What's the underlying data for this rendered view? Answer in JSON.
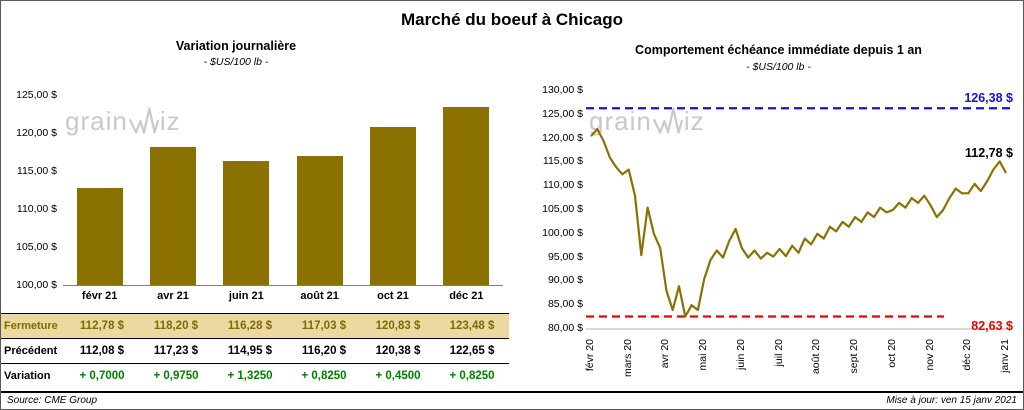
{
  "page": {
    "title": "Marché du boeuf à Chicago",
    "watermark": {
      "prefix": "grain",
      "suffix": "iz"
    },
    "source": "Source: CME Group",
    "updated": "Mise à jour: ven 15 janv 2021"
  },
  "table": {
    "rows": [
      {
        "name": "fermeture",
        "label": "Fermeture",
        "label_color": "#7f6b00",
        "value_color": "#7f6b00",
        "bg": "#ecd9a2",
        "values": [
          "112,78 $",
          "118,20 $",
          "116,28 $",
          "117,03 $",
          "120,83 $",
          "123,48 $"
        ]
      },
      {
        "name": "precedent",
        "label": "Précédent",
        "label_color": "#000000",
        "value_color": "#000000",
        "bg": "#ffffff",
        "values": [
          "112,08 $",
          "117,23 $",
          "114,95 $",
          "116,20 $",
          "120,38 $",
          "122,65 $"
        ]
      },
      {
        "name": "variation",
        "label": "Variation",
        "label_color": "#000000",
        "value_color": "#008000",
        "bg": "#ffffff",
        "values": [
          "+ 0,7000",
          "+ 0,9750",
          "+ 1,3250",
          "+ 0,8250",
          "+ 0,4500",
          "+ 0,8250"
        ]
      }
    ]
  },
  "chart_data": [
    {
      "id": "variation_journaliere",
      "type": "bar",
      "title": "Variation journalière",
      "subtitle": "- $US/100 lb -",
      "categories": [
        "févr 21",
        "avr 21",
        "juin 21",
        "août 21",
        "oct 21",
        "déc 21"
      ],
      "values": [
        112.78,
        118.2,
        116.28,
        117.03,
        120.83,
        123.48
      ],
      "ylabel": "$US/100 lb",
      "ylim": [
        100,
        125
      ],
      "ytick_step": 5,
      "grid": false,
      "bar_color": "#8a7100"
    },
    {
      "id": "comportement_echeance",
      "type": "line",
      "title": "Comportement échéance immédiate depuis 1 an",
      "subtitle": "- $US/100 lb -",
      "x_labels": [
        "févr 20",
        "mars 20",
        "avr 20",
        "mai 20",
        "juin 20",
        "juil 20",
        "août 20",
        "sept 20",
        "oct 20",
        "nov 20",
        "déc 20",
        "janv 21"
      ],
      "values": [
        120.5,
        122.0,
        119.5,
        116.0,
        114.0,
        112.5,
        113.5,
        108.0,
        95.5,
        105.5,
        100.0,
        97.0,
        88.0,
        84.0,
        89.0,
        82.63,
        85.0,
        84.0,
        90.5,
        94.5,
        96.5,
        95.0,
        98.5,
        101.0,
        97.0,
        95.0,
        96.5,
        94.8,
        96.0,
        95.2,
        96.8,
        95.3,
        97.5,
        96.0,
        99.0,
        97.8,
        100.0,
        99.0,
        101.5,
        100.5,
        102.5,
        101.5,
        103.5,
        102.5,
        104.5,
        103.5,
        105.5,
        104.5,
        105.0,
        106.5,
        105.5,
        107.5,
        106.5,
        108.0,
        106.0,
        103.5,
        105.0,
        107.5,
        109.5,
        108.5,
        108.5,
        110.5,
        109.0,
        111.0,
        113.5,
        115.2,
        112.78
      ],
      "ylabel": "$US/100 lb",
      "ylim": [
        80,
        130
      ],
      "ytick_step": 5,
      "grid": false,
      "line_color": "#8a7100",
      "annotations": {
        "high": {
          "value": 126.38,
          "label": "126,38 $",
          "color": "#1414cc",
          "style": "dashed"
        },
        "last": {
          "value": 112.78,
          "label": "112,78 $",
          "color": "#000000"
        },
        "low": {
          "value": 82.63,
          "label": "82,63 $",
          "color": "#ee0000",
          "style": "dashed"
        }
      }
    }
  ]
}
